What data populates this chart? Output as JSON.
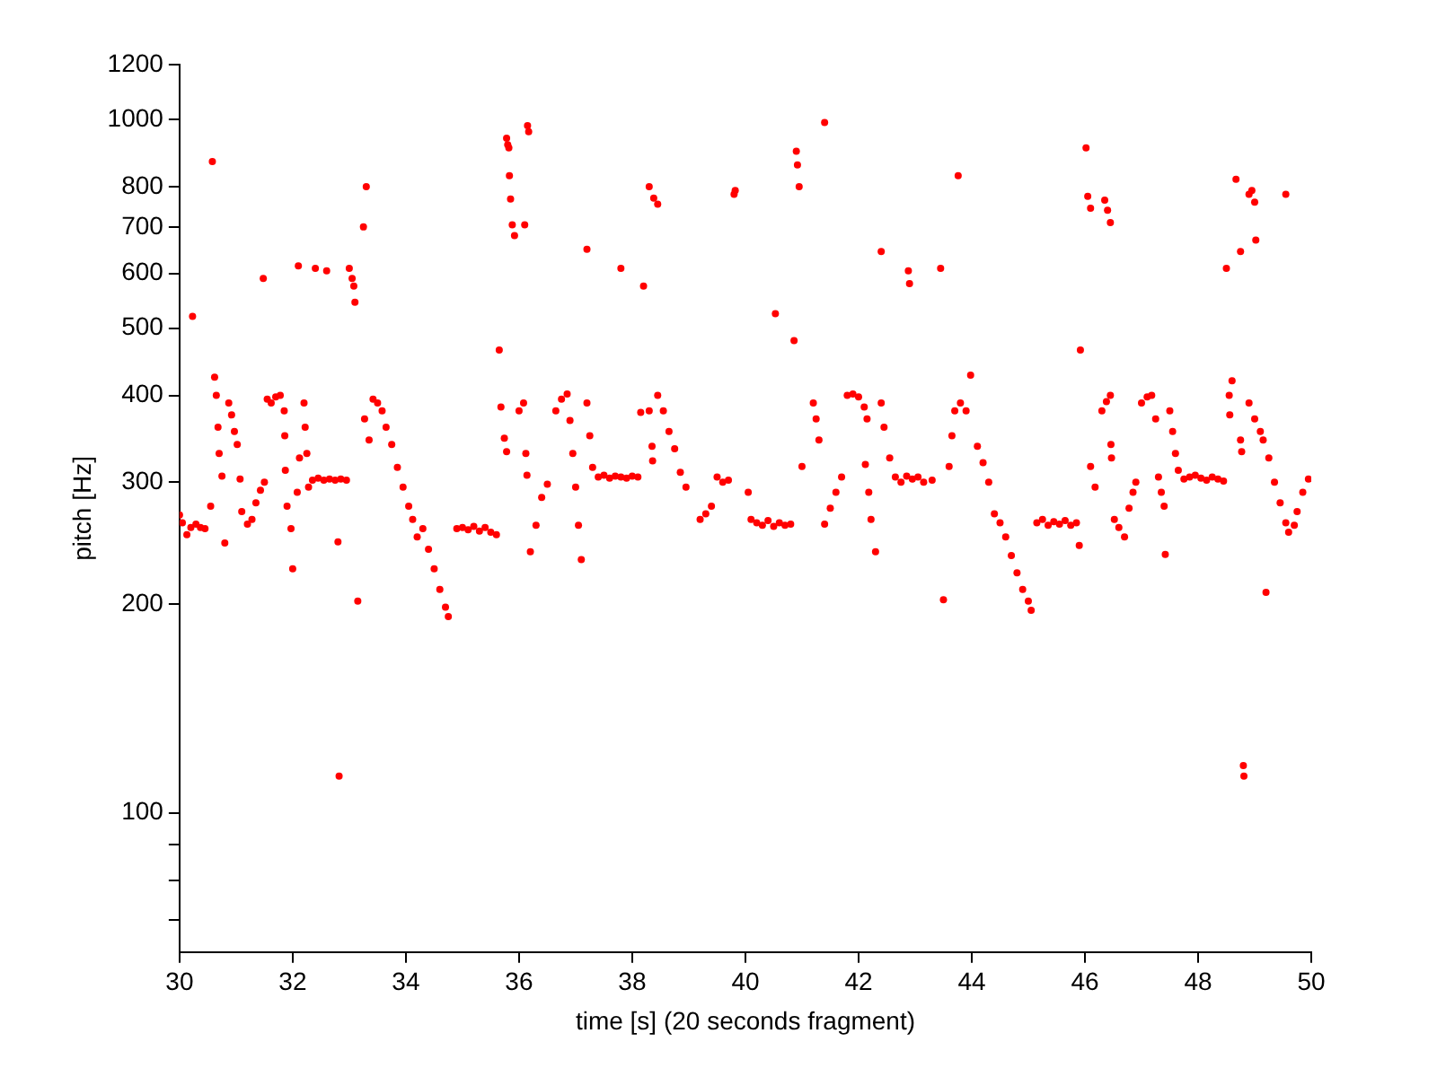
{
  "chart_data": {
    "type": "scatter",
    "xlabel": "time [s] (20 seconds fragment)",
    "ylabel": "pitch [Hz]",
    "log": "y",
    "marker": "circle",
    "color": "#ff0000",
    "xlim": [
      30,
      50
    ],
    "xticks": [
      30,
      32,
      34,
      36,
      38,
      40,
      42,
      44,
      46,
      48,
      50
    ],
    "ylim": [
      63,
      1200
    ],
    "yticks": [
      {
        "value": 70,
        "label": null
      },
      {
        "value": 80,
        "label": null
      },
      {
        "value": 90,
        "label": null
      },
      100,
      200,
      300,
      400,
      500,
      600,
      700,
      800,
      1000,
      1200
    ],
    "x": [
      30.0,
      30.05,
      30.13,
      30.2,
      30.29,
      30.37,
      30.45,
      30.55,
      30.58,
      30.23,
      30.62,
      30.65,
      30.68,
      30.7,
      30.75,
      30.8,
      30.87,
      30.92,
      30.97,
      31.02,
      31.07,
      31.1,
      31.2,
      31.28,
      31.35,
      31.43,
      31.5,
      31.48,
      31.55,
      31.62,
      31.7,
      31.78,
      31.85,
      31.86,
      31.87,
      31.9,
      31.97,
      32.0,
      32.1,
      32.08,
      32.12,
      32.2,
      32.22,
      32.25,
      32.28,
      32.35,
      32.45,
      32.55,
      32.65,
      32.75,
      32.85,
      32.95,
      32.4,
      32.6,
      32.8,
      32.82,
      33.0,
      33.05,
      33.08,
      33.1,
      33.15,
      33.25,
      33.3,
      33.27,
      33.35,
      33.42,
      33.5,
      33.58,
      33.65,
      33.75,
      33.85,
      33.95,
      34.05,
      34.12,
      34.2,
      34.3,
      34.4,
      34.5,
      34.6,
      34.7,
      34.75,
      34.9,
      35.0,
      35.1,
      35.2,
      35.3,
      35.4,
      35.5,
      35.6,
      35.65,
      35.68,
      35.74,
      35.78,
      35.78,
      35.8,
      35.82,
      35.83,
      35.85,
      35.88,
      35.92,
      36.0,
      36.08,
      36.1,
      36.12,
      36.14,
      36.15,
      36.17,
      36.2,
      36.3,
      36.4,
      36.5,
      36.65,
      36.75,
      36.85,
      36.9,
      36.95,
      37.0,
      37.05,
      37.1,
      37.2,
      37.25,
      37.3,
      37.2,
      37.4,
      37.5,
      37.6,
      37.7,
      37.8,
      37.9,
      38.0,
      38.1,
      37.8,
      38.2,
      38.3,
      38.38,
      38.45,
      38.15,
      38.3,
      38.35,
      38.36,
      38.45,
      38.55,
      38.65,
      38.75,
      38.85,
      38.95,
      39.2,
      39.3,
      39.4,
      39.5,
      39.6,
      39.7,
      39.8,
      39.82,
      40.05,
      40.1,
      40.2,
      40.3,
      40.4,
      40.5,
      40.6,
      40.7,
      40.8,
      40.53,
      40.86,
      40.9,
      40.92,
      40.95,
      41.0,
      41.2,
      41.25,
      41.3,
      41.4,
      41.5,
      41.6,
      41.7,
      41.4,
      41.8,
      41.9,
      42.0,
      42.1,
      42.15,
      42.12,
      42.18,
      42.22,
      42.3,
      42.4,
      42.45,
      42.55,
      42.65,
      42.75,
      42.85,
      42.95,
      43.05,
      43.15,
      43.3,
      42.4,
      42.88,
      42.9,
      43.45,
      43.5,
      43.6,
      43.65,
      43.7,
      43.8,
      43.9,
      43.98,
      43.76,
      44.1,
      44.2,
      44.3,
      44.4,
      44.5,
      44.6,
      44.7,
      44.8,
      44.9,
      45.0,
      45.05,
      45.15,
      45.25,
      45.35,
      45.45,
      45.55,
      45.65,
      45.75,
      45.85,
      45.9,
      45.92,
      46.02,
      46.05,
      46.1,
      46.1,
      46.18,
      46.3,
      46.38,
      46.45,
      46.35,
      46.4,
      46.45,
      46.46,
      46.47,
      46.52,
      46.6,
      46.7,
      46.78,
      46.85,
      46.9,
      47.0,
      47.1,
      47.18,
      47.25,
      47.3,
      47.35,
      47.4,
      47.42,
      47.5,
      47.55,
      47.6,
      47.65,
      47.75,
      47.85,
      47.95,
      48.05,
      48.15,
      48.25,
      48.35,
      48.45,
      48.5,
      48.55,
      48.56,
      48.6,
      48.67,
      48.75,
      48.75,
      48.77,
      48.8,
      48.81,
      48.9,
      48.95,
      49.0,
      49.02,
      48.9,
      49.0,
      49.1,
      49.15,
      49.2,
      49.25,
      49.35,
      49.45,
      49.55,
      49.6,
      49.55,
      49.7,
      49.75,
      49.85,
      49.95
    ],
    "values": [
      269,
      262,
      252,
      258,
      261,
      258,
      257,
      277,
      870,
      520,
      425,
      400,
      360,
      330,
      306,
      245,
      390,
      375,
      355,
      340,
      303,
      272,
      261,
      265,
      280,
      292,
      300,
      590,
      395,
      390,
      398,
      400,
      380,
      350,
      312,
      277,
      257,
      225,
      615,
      290,
      325,
      390,
      360,
      330,
      295,
      302,
      304,
      302,
      303,
      302,
      303,
      302,
      610,
      605,
      246,
      113,
      610,
      590,
      575,
      545,
      202,
      700,
      800,
      370,
      345,
      395,
      390,
      380,
      360,
      340,
      315,
      295,
      277,
      265,
      250,
      257,
      240,
      225,
      210,
      198,
      192,
      257,
      258,
      256,
      259,
      255,
      258,
      254,
      252,
      465,
      385,
      347,
      332,
      940,
      920,
      910,
      830,
      768,
      705,
      680,
      380,
      390,
      705,
      330,
      307,
      980,
      960,
      238,
      260,
      285,
      298,
      380,
      395,
      402,
      368,
      330,
      295,
      260,
      232,
      390,
      350,
      315,
      650,
      305,
      307,
      304,
      306,
      305,
      304,
      306,
      305,
      610,
      575,
      800,
      770,
      755,
      378,
      380,
      338,
      322,
      400,
      380,
      355,
      335,
      310,
      295,
      265,
      270,
      277,
      305,
      300,
      302,
      780,
      790,
      290,
      265,
      262,
      260,
      264,
      259,
      262,
      260,
      261,
      525,
      480,
      900,
      860,
      800,
      316,
      390,
      370,
      345,
      261,
      275,
      290,
      305,
      990,
      400,
      402,
      398,
      385,
      370,
      318,
      290,
      265,
      238,
      390,
      360,
      325,
      305,
      300,
      306,
      303,
      305,
      300,
      302,
      645,
      605,
      580,
      610,
      203,
      316,
      350,
      380,
      390,
      380,
      428,
      830,
      338,
      320,
      300,
      270,
      262,
      250,
      235,
      222,
      210,
      202,
      196,
      262,
      265,
      260,
      263,
      261,
      264,
      260,
      262,
      243,
      465,
      910,
      775,
      745,
      316,
      295,
      380,
      392,
      400,
      765,
      740,
      710,
      340,
      325,
      265,
      258,
      250,
      275,
      290,
      300,
      390,
      398,
      400,
      370,
      305,
      290,
      277,
      236,
      380,
      355,
      330,
      312,
      303,
      305,
      307,
      304,
      302,
      305,
      303,
      301,
      610,
      400,
      375,
      420,
      820,
      645,
      345,
      332,
      117,
      113,
      780,
      790,
      760,
      670,
      390,
      370,
      355,
      345,
      208,
      325,
      300,
      280,
      262,
      254,
      780,
      260,
      272,
      290,
      303
    ]
  }
}
